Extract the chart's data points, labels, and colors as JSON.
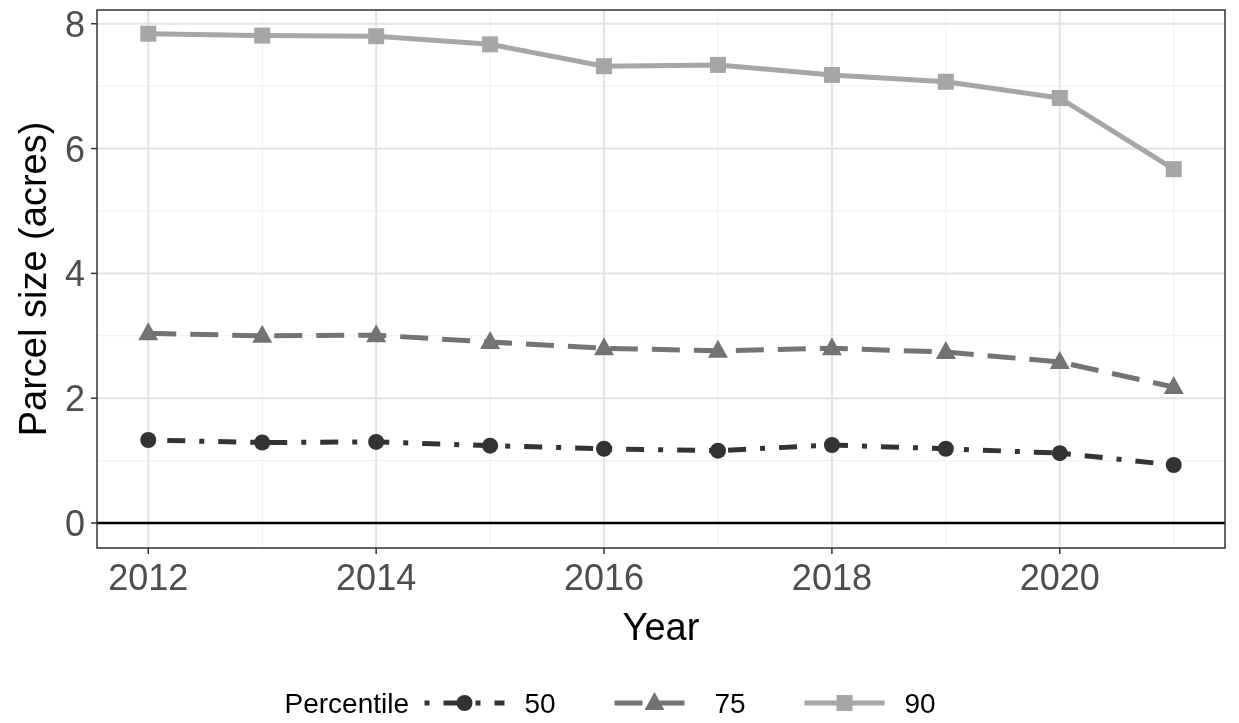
{
  "chart_data": {
    "type": "line",
    "xlabel": "Year",
    "ylabel": "Parcel size (acres)",
    "legend_title": "Percentile",
    "x": [
      2012,
      2013,
      2014,
      2015,
      2016,
      2017,
      2018,
      2019,
      2020,
      2021
    ],
    "series": [
      {
        "name": "50",
        "color": "#333333",
        "marker": "circle",
        "line_style": "dotted",
        "values": [
          1.33,
          1.29,
          1.3,
          1.24,
          1.19,
          1.16,
          1.25,
          1.19,
          1.12,
          0.93
        ]
      },
      {
        "name": "75",
        "color": "#737373",
        "marker": "triangle",
        "line_style": "dashed",
        "values": [
          3.04,
          3.0,
          3.01,
          2.9,
          2.8,
          2.76,
          2.8,
          2.74,
          2.58,
          2.18
        ]
      },
      {
        "name": "90",
        "color": "#a6a6a6",
        "marker": "square",
        "line_style": "solid",
        "values": [
          7.84,
          7.81,
          7.8,
          7.67,
          7.32,
          7.34,
          7.18,
          7.07,
          6.81,
          5.67
        ]
      }
    ],
    "xlim": [
      2011.55,
      2021.45
    ],
    "xticks": [
      2012,
      2014,
      2016,
      2018,
      2020
    ],
    "ylim": [
      -0.4,
      8.22
    ],
    "yticks": [
      0,
      2,
      4,
      6,
      8
    ],
    "ref_lines": [
      {
        "axis": "y",
        "value": 0,
        "color": "#000000"
      }
    ],
    "grid": true,
    "legend": "bottom"
  }
}
